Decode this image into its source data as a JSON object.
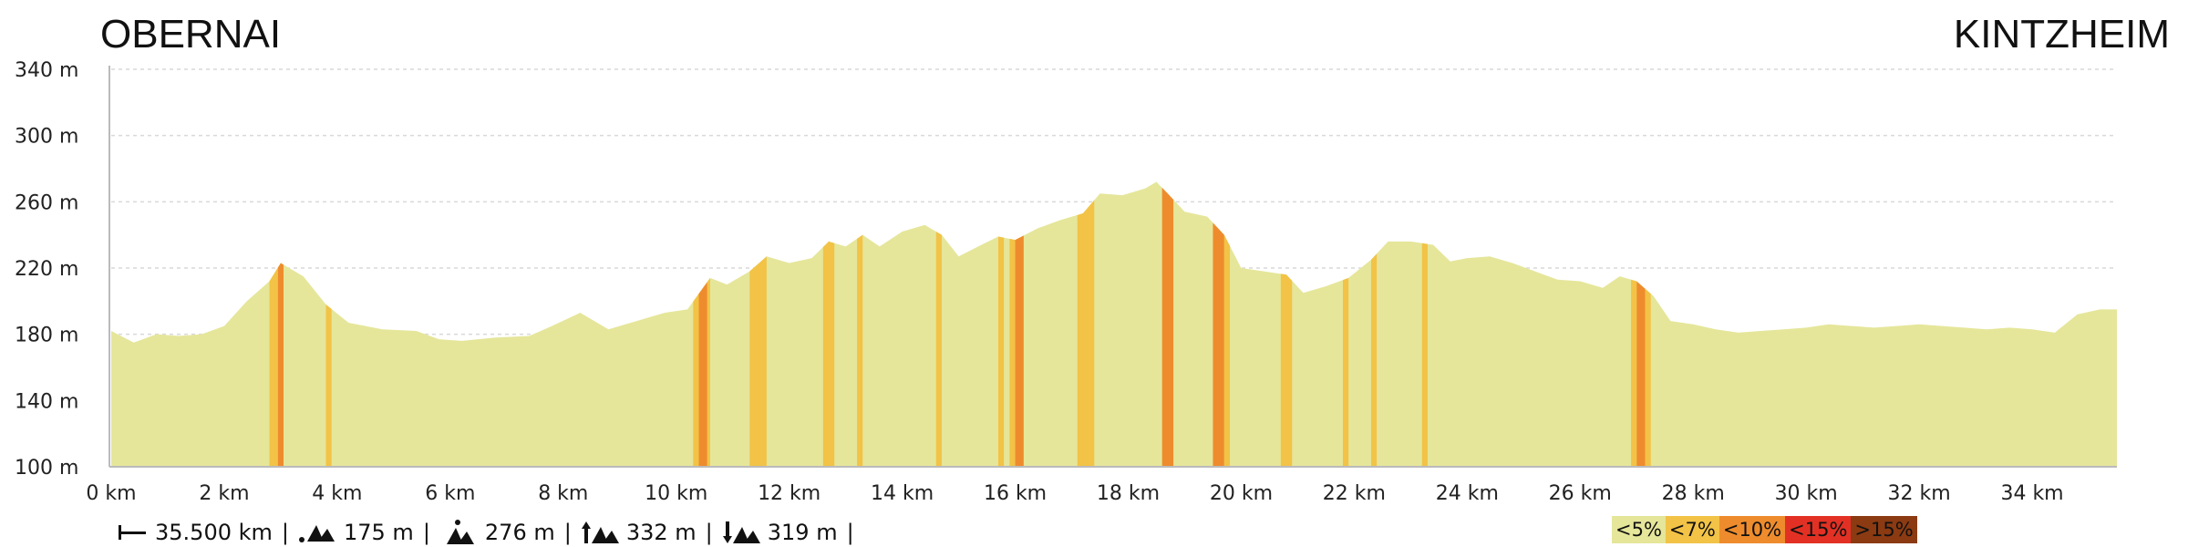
{
  "chart_data": {
    "type": "area",
    "title": "",
    "start_label": "OBERNAI",
    "end_label": "KINTZHEIM",
    "xlabel": "",
    "ylabel": "",
    "x_unit": "km",
    "y_unit": "m",
    "xlim": [
      0,
      35.5
    ],
    "ylim": [
      100,
      340
    ],
    "x_ticks": [
      "0 km",
      "2 km",
      "4 km",
      "6 km",
      "8 km",
      "10 km",
      "12 km",
      "14 km",
      "16 km",
      "18 km",
      "20 km",
      "22 km",
      "24 km",
      "26 km",
      "28 km",
      "30 km",
      "32 km",
      "34 km"
    ],
    "x_tick_values": [
      0,
      2,
      4,
      6,
      8,
      10,
      12,
      14,
      16,
      18,
      20,
      22,
      24,
      26,
      28,
      30,
      32,
      34
    ],
    "y_ticks": [
      "100 m",
      "140 m",
      "180 m",
      "220 m",
      "260 m",
      "300 m",
      "340 m"
    ],
    "y_tick_values": [
      100,
      140,
      180,
      220,
      260,
      300,
      340
    ],
    "grid": true,
    "elevation_profile": [
      [
        0,
        182
      ],
      [
        0.4,
        175
      ],
      [
        0.8,
        180
      ],
      [
        1.2,
        179
      ],
      [
        1.6,
        180
      ],
      [
        2.0,
        185
      ],
      [
        2.4,
        200
      ],
      [
        2.8,
        212
      ],
      [
        3.0,
        223
      ],
      [
        3.4,
        215
      ],
      [
        3.8,
        198
      ],
      [
        4.2,
        187
      ],
      [
        4.8,
        183
      ],
      [
        5.4,
        182
      ],
      [
        5.8,
        177
      ],
      [
        6.2,
        176
      ],
      [
        6.8,
        178
      ],
      [
        7.4,
        179
      ],
      [
        7.8,
        185
      ],
      [
        8.3,
        193
      ],
      [
        8.8,
        183
      ],
      [
        9.3,
        188
      ],
      [
        9.8,
        193
      ],
      [
        10.2,
        195
      ],
      [
        10.6,
        214
      ],
      [
        10.9,
        210
      ],
      [
        11.3,
        218
      ],
      [
        11.6,
        227
      ],
      [
        12.0,
        223
      ],
      [
        12.4,
        226
      ],
      [
        12.7,
        236
      ],
      [
        13.0,
        233
      ],
      [
        13.3,
        240
      ],
      [
        13.6,
        233
      ],
      [
        14.0,
        242
      ],
      [
        14.4,
        246
      ],
      [
        14.7,
        240
      ],
      [
        15.0,
        227
      ],
      [
        15.4,
        234
      ],
      [
        15.7,
        239
      ],
      [
        16.0,
        237
      ],
      [
        16.4,
        244
      ],
      [
        16.8,
        249
      ],
      [
        17.2,
        253
      ],
      [
        17.5,
        265
      ],
      [
        17.9,
        264
      ],
      [
        18.3,
        268
      ],
      [
        18.5,
        272
      ],
      [
        18.7,
        265
      ],
      [
        19.0,
        254
      ],
      [
        19.4,
        251
      ],
      [
        19.7,
        240
      ],
      [
        20.0,
        220
      ],
      [
        20.4,
        218
      ],
      [
        20.8,
        216
      ],
      [
        21.1,
        205
      ],
      [
        21.5,
        209
      ],
      [
        21.9,
        214
      ],
      [
        22.3,
        225
      ],
      [
        22.6,
        236
      ],
      [
        23.0,
        236
      ],
      [
        23.4,
        234
      ],
      [
        23.7,
        224
      ],
      [
        24.0,
        226
      ],
      [
        24.4,
        227
      ],
      [
        24.8,
        223
      ],
      [
        25.2,
        218
      ],
      [
        25.6,
        213
      ],
      [
        26.0,
        212
      ],
      [
        26.4,
        208
      ],
      [
        26.7,
        215
      ],
      [
        27.0,
        212
      ],
      [
        27.3,
        203
      ],
      [
        27.6,
        188
      ],
      [
        28.0,
        186
      ],
      [
        28.4,
        183
      ],
      [
        28.8,
        181
      ],
      [
        29.2,
        182
      ],
      [
        29.6,
        183
      ],
      [
        30.0,
        184
      ],
      [
        30.4,
        186
      ],
      [
        30.8,
        185
      ],
      [
        31.2,
        184
      ],
      [
        31.6,
        185
      ],
      [
        32.0,
        186
      ],
      [
        32.4,
        185
      ],
      [
        32.8,
        184
      ],
      [
        33.2,
        183
      ],
      [
        33.6,
        184
      ],
      [
        34.0,
        183
      ],
      [
        34.4,
        181
      ],
      [
        34.8,
        192
      ],
      [
        35.2,
        195
      ],
      [
        35.5,
        195
      ]
    ],
    "grade_segments": [
      {
        "from": 2.8,
        "to": 2.95,
        "grade": "<7%"
      },
      {
        "from": 2.95,
        "to": 3.05,
        "grade": "<10%"
      },
      {
        "from": 3.8,
        "to": 3.9,
        "grade": "<7%"
      },
      {
        "from": 10.3,
        "to": 10.4,
        "grade": "<7%"
      },
      {
        "from": 10.4,
        "to": 10.55,
        "grade": "<10%"
      },
      {
        "from": 10.55,
        "to": 10.6,
        "grade": "<7%"
      },
      {
        "from": 11.3,
        "to": 11.6,
        "grade": "<7%"
      },
      {
        "from": 12.6,
        "to": 12.8,
        "grade": "<7%"
      },
      {
        "from": 13.2,
        "to": 13.3,
        "grade": "<7%"
      },
      {
        "from": 14.6,
        "to": 14.7,
        "grade": "<7%"
      },
      {
        "from": 15.7,
        "to": 15.8,
        "grade": "<7%"
      },
      {
        "from": 15.9,
        "to": 16.0,
        "grade": "<7%"
      },
      {
        "from": 16.0,
        "to": 16.15,
        "grade": "<10%"
      },
      {
        "from": 17.1,
        "to": 17.4,
        "grade": "<7%"
      },
      {
        "from": 18.6,
        "to": 18.8,
        "grade": "<10%"
      },
      {
        "from": 19.5,
        "to": 19.7,
        "grade": "<10%"
      },
      {
        "from": 19.7,
        "to": 19.8,
        "grade": "<7%"
      },
      {
        "from": 20.7,
        "to": 20.9,
        "grade": "<7%"
      },
      {
        "from": 21.8,
        "to": 21.9,
        "grade": "<7%"
      },
      {
        "from": 22.3,
        "to": 22.4,
        "grade": "<7%"
      },
      {
        "from": 23.2,
        "to": 23.3,
        "grade": "<7%"
      },
      {
        "from": 26.9,
        "to": 27.0,
        "grade": "<7%"
      },
      {
        "from": 27.0,
        "to": 27.15,
        "grade": "<10%"
      },
      {
        "from": 27.15,
        "to": 27.25,
        "grade": "<7%"
      }
    ],
    "legend": [
      {
        "label": "<5%",
        "color": "#e5e69a"
      },
      {
        "label": "<7%",
        "color": "#f2c346"
      },
      {
        "label": "<10%",
        "color": "#ee8c2d"
      },
      {
        "label": "<15%",
        "color": "#e23124"
      },
      {
        "label": ">15%",
        "color": "#8b3a12"
      }
    ],
    "legend_position": "bottom-right"
  },
  "stats": {
    "distance": "35.500 km",
    "min_altitude": "175 m",
    "max_altitude": "276 m",
    "ascent": "332 m",
    "descent": "319 m"
  }
}
